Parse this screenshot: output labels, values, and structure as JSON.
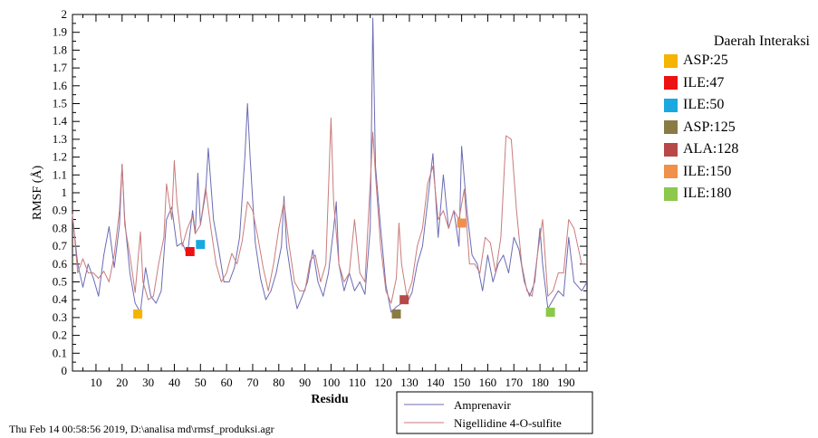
{
  "chart_data": {
    "type": "line",
    "title": "",
    "xlabel": "Residu",
    "ylabel": "RMSF (Å)",
    "xlim": [
      1,
      198
    ],
    "ylim": [
      0,
      2
    ],
    "x_ticks": [
      10,
      20,
      30,
      40,
      50,
      60,
      70,
      80,
      90,
      100,
      110,
      120,
      130,
      140,
      150,
      160,
      170,
      180,
      190
    ],
    "y_ticks": [
      0,
      0.1,
      0.2,
      0.3,
      0.4,
      0.5,
      0.6,
      0.7,
      0.8,
      0.9,
      1,
      1.1,
      1.2,
      1.3,
      1.4,
      1.5,
      1.6,
      1.7,
      1.8,
      1.9,
      2
    ],
    "series": [
      {
        "name": "Amprenavir",
        "color": "#6b6bb5",
        "points": [
          [
            1,
            0.87
          ],
          [
            3,
            0.6
          ],
          [
            5,
            0.47
          ],
          [
            7,
            0.6
          ],
          [
            9,
            0.52
          ],
          [
            11,
            0.42
          ],
          [
            13,
            0.65
          ],
          [
            15,
            0.81
          ],
          [
            17,
            0.58
          ],
          [
            19,
            0.82
          ],
          [
            20,
            1.16
          ],
          [
            21,
            0.85
          ],
          [
            23,
            0.55
          ],
          [
            25,
            0.38
          ],
          [
            27,
            0.33
          ],
          [
            29,
            0.58
          ],
          [
            31,
            0.42
          ],
          [
            33,
            0.38
          ],
          [
            35,
            0.45
          ],
          [
            37,
            0.85
          ],
          [
            39,
            0.92
          ],
          [
            41,
            0.7
          ],
          [
            43,
            0.72
          ],
          [
            45,
            0.65
          ],
          [
            47,
            0.9
          ],
          [
            48,
            0.77
          ],
          [
            49,
            1.11
          ],
          [
            50,
            0.82
          ],
          [
            52,
            1.0
          ],
          [
            53,
            1.25
          ],
          [
            55,
            0.85
          ],
          [
            57,
            0.68
          ],
          [
            59,
            0.5
          ],
          [
            61,
            0.5
          ],
          [
            63,
            0.58
          ],
          [
            65,
            0.75
          ],
          [
            67,
            1.2
          ],
          [
            68,
            1.5
          ],
          [
            69,
            1.2
          ],
          [
            71,
            0.72
          ],
          [
            73,
            0.52
          ],
          [
            75,
            0.4
          ],
          [
            77,
            0.45
          ],
          [
            79,
            0.55
          ],
          [
            81,
            0.7
          ],
          [
            82,
            0.98
          ],
          [
            83,
            0.7
          ],
          [
            85,
            0.5
          ],
          [
            87,
            0.35
          ],
          [
            89,
            0.42
          ],
          [
            91,
            0.5
          ],
          [
            93,
            0.68
          ],
          [
            95,
            0.5
          ],
          [
            97,
            0.42
          ],
          [
            99,
            0.55
          ],
          [
            101,
            0.8
          ],
          [
            102,
            0.95
          ],
          [
            103,
            0.6
          ],
          [
            105,
            0.45
          ],
          [
            107,
            0.55
          ],
          [
            109,
            0.45
          ],
          [
            111,
            0.5
          ],
          [
            113,
            0.43
          ],
          [
            115,
            0.8
          ],
          [
            116,
            1.98
          ],
          [
            117,
            1.15
          ],
          [
            119,
            0.8
          ],
          [
            121,
            0.48
          ],
          [
            123,
            0.33
          ],
          [
            125,
            0.36
          ],
          [
            127,
            0.38
          ],
          [
            129,
            0.38
          ],
          [
            131,
            0.44
          ],
          [
            133,
            0.6
          ],
          [
            135,
            0.7
          ],
          [
            137,
            0.95
          ],
          [
            139,
            1.22
          ],
          [
            141,
            0.75
          ],
          [
            143,
            1.1
          ],
          [
            145,
            0.8
          ],
          [
            147,
            0.9
          ],
          [
            149,
            0.7
          ],
          [
            150,
            1.26
          ],
          [
            152,
            0.9
          ],
          [
            154,
            0.65
          ],
          [
            156,
            0.6
          ],
          [
            158,
            0.45
          ],
          [
            160,
            0.65
          ],
          [
            162,
            0.5
          ],
          [
            164,
            0.6
          ],
          [
            166,
            0.65
          ],
          [
            168,
            0.55
          ],
          [
            170,
            0.75
          ],
          [
            172,
            0.68
          ],
          [
            174,
            0.5
          ],
          [
            176,
            0.42
          ],
          [
            178,
            0.5
          ],
          [
            180,
            0.8
          ],
          [
            181,
            0.6
          ],
          [
            183,
            0.35
          ],
          [
            185,
            0.4
          ],
          [
            187,
            0.45
          ],
          [
            189,
            0.42
          ],
          [
            191,
            0.75
          ],
          [
            193,
            0.5
          ],
          [
            196,
            0.45
          ],
          [
            198,
            0.5
          ]
        ]
      },
      {
        "name": "Nigellidine 4-O-sulfite",
        "color": "#c97b7b",
        "points": [
          [
            1,
            0.88
          ],
          [
            3,
            0.55
          ],
          [
            5,
            0.63
          ],
          [
            7,
            0.55
          ],
          [
            9,
            0.55
          ],
          [
            11,
            0.52
          ],
          [
            13,
            0.56
          ],
          [
            15,
            0.5
          ],
          [
            17,
            0.65
          ],
          [
            19,
            0.9
          ],
          [
            20,
            1.16
          ],
          [
            21,
            0.82
          ],
          [
            23,
            0.65
          ],
          [
            25,
            0.44
          ],
          [
            27,
            0.78
          ],
          [
            28,
            0.5
          ],
          [
            30,
            0.4
          ],
          [
            32,
            0.42
          ],
          [
            34,
            0.6
          ],
          [
            36,
            0.75
          ],
          [
            37,
            1.05
          ],
          [
            39,
            0.85
          ],
          [
            40,
            1.18
          ],
          [
            41,
            0.95
          ],
          [
            43,
            0.7
          ],
          [
            45,
            0.8
          ],
          [
            47,
            0.87
          ],
          [
            48,
            0.77
          ],
          [
            50,
            0.82
          ],
          [
            52,
            1.03
          ],
          [
            54,
            0.8
          ],
          [
            56,
            0.6
          ],
          [
            58,
            0.5
          ],
          [
            60,
            0.55
          ],
          [
            62,
            0.66
          ],
          [
            64,
            0.6
          ],
          [
            66,
            0.73
          ],
          [
            68,
            0.95
          ],
          [
            70,
            0.9
          ],
          [
            72,
            0.75
          ],
          [
            74,
            0.58
          ],
          [
            76,
            0.45
          ],
          [
            78,
            0.6
          ],
          [
            80,
            0.8
          ],
          [
            82,
            0.95
          ],
          [
            84,
            0.7
          ],
          [
            86,
            0.5
          ],
          [
            88,
            0.45
          ],
          [
            90,
            0.45
          ],
          [
            92,
            0.62
          ],
          [
            94,
            0.65
          ],
          [
            96,
            0.5
          ],
          [
            98,
            0.6
          ],
          [
            100,
            1.42
          ],
          [
            101,
            0.95
          ],
          [
            103,
            0.6
          ],
          [
            105,
            0.5
          ],
          [
            107,
            0.55
          ],
          [
            109,
            0.85
          ],
          [
            111,
            0.55
          ],
          [
            113,
            0.5
          ],
          [
            115,
            1.05
          ],
          [
            116,
            1.34
          ],
          [
            117,
            1.1
          ],
          [
            119,
            0.7
          ],
          [
            121,
            0.45
          ],
          [
            123,
            0.38
          ],
          [
            125,
            0.52
          ],
          [
            126,
            0.83
          ],
          [
            127,
            0.6
          ],
          [
            129,
            0.42
          ],
          [
            131,
            0.5
          ],
          [
            133,
            0.7
          ],
          [
            135,
            0.8
          ],
          [
            137,
            1.05
          ],
          [
            139,
            1.15
          ],
          [
            141,
            0.85
          ],
          [
            143,
            0.9
          ],
          [
            145,
            0.8
          ],
          [
            147,
            0.9
          ],
          [
            149,
            0.85
          ],
          [
            151,
            1.02
          ],
          [
            153,
            0.6
          ],
          [
            155,
            0.6
          ],
          [
            157,
            0.55
          ],
          [
            159,
            0.75
          ],
          [
            161,
            0.72
          ],
          [
            163,
            0.55
          ],
          [
            165,
            0.75
          ],
          [
            167,
            1.32
          ],
          [
            169,
            1.3
          ],
          [
            171,
            0.9
          ],
          [
            173,
            0.6
          ],
          [
            175,
            0.45
          ],
          [
            177,
            0.42
          ],
          [
            179,
            0.65
          ],
          [
            181,
            0.85
          ],
          [
            183,
            0.42
          ],
          [
            185,
            0.45
          ],
          [
            187,
            0.55
          ],
          [
            189,
            0.55
          ],
          [
            191,
            0.85
          ],
          [
            193,
            0.8
          ],
          [
            196,
            0.6
          ],
          [
            198,
            0.6
          ]
        ]
      }
    ],
    "markers": [
      {
        "label": "ASP:25",
        "x": 26,
        "y": 0.32,
        "color": "#f5b400"
      },
      {
        "label": "ILE:47",
        "x": 46,
        "y": 0.67,
        "color": "#ee1111"
      },
      {
        "label": "ILE:50",
        "x": 50,
        "y": 0.71,
        "color": "#1aa8e0"
      },
      {
        "label": "ASP:125",
        "x": 125,
        "y": 0.32,
        "color": "#8a7a44"
      },
      {
        "label": "ALA:128",
        "x": 128,
        "y": 0.4,
        "color": "#b84848"
      },
      {
        "label": "ILE:150",
        "x": 150,
        "y": 0.83,
        "color": "#f0904a"
      },
      {
        "label": "ILE:180",
        "x": 184,
        "y": 0.33,
        "color": "#8cc84c"
      }
    ]
  },
  "legend_right": {
    "title": "Daerah Interaksi",
    "items": [
      {
        "label": "ASP:25",
        "color": "#f5b400"
      },
      {
        "label": "ILE:47",
        "color": "#ee1111"
      },
      {
        "label": "ILE:50",
        "color": "#1aa8e0"
      },
      {
        "label": "ASP:125",
        "color": "#8a7a44"
      },
      {
        "label": "ALA:128",
        "color": "#b84848"
      },
      {
        "label": "ILE:150",
        "color": "#f0904a"
      },
      {
        "label": "ILE:180",
        "color": "#8cc84c"
      }
    ]
  },
  "legend_series": {
    "items": [
      {
        "label": "Amprenavir",
        "color": "#6b6bb5"
      },
      {
        "label": "Nigellidine 4-O-sulfite",
        "color": "#c97b7b"
      }
    ]
  },
  "footer": "Thu Feb 14 00:58:56 2019, D:\\analisa md\\rmsf_produksi.agr"
}
